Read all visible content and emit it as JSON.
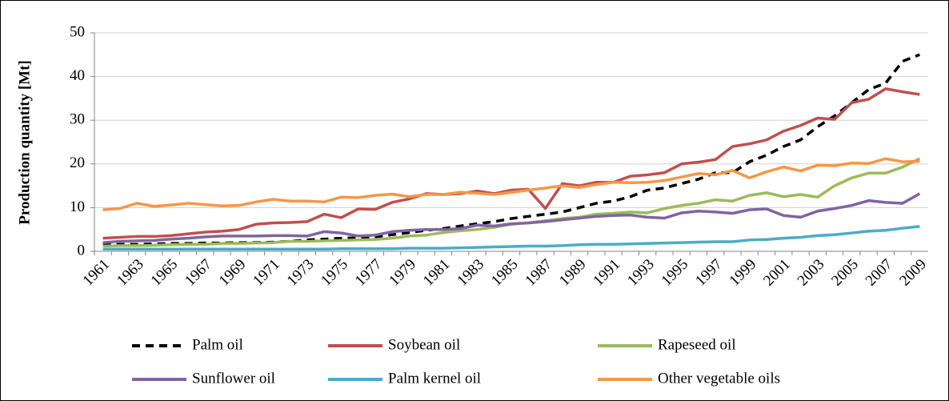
{
  "chart_data": {
    "type": "line",
    "y_label": "Production quantity [Mt]",
    "categories": [
      "1961",
      null,
      "1963",
      null,
      "1965",
      null,
      "1967",
      null,
      "1969",
      null,
      "1971",
      null,
      "1973",
      null,
      "1975",
      null,
      "1977",
      null,
      "1979",
      null,
      "1981",
      null,
      "1983",
      null,
      "1985",
      null,
      "1987",
      null,
      "1989",
      null,
      "1991",
      null,
      "1993",
      null,
      "1995",
      null,
      "1997",
      null,
      "1999",
      null,
      "2001",
      null,
      "2003",
      null,
      "2005",
      null,
      "2007",
      null,
      "2009"
    ],
    "ylim": [
      0,
      50
    ],
    "yticks": [
      0,
      10,
      20,
      30,
      40,
      50
    ],
    "grid": true,
    "legend": "bottom",
    "series": [
      {
        "name": "Palm oil",
        "color": "#000000",
        "dashed": true,
        "values": [
          1.5,
          1.6,
          1.6,
          1.7,
          1.8,
          1.8,
          1.9,
          1.9,
          2.0,
          2.0,
          2.1,
          2.3,
          2.6,
          2.8,
          3.0,
          3.1,
          3.3,
          3.8,
          4.3,
          4.8,
          5.2,
          5.8,
          6.3,
          6.8,
          7.5,
          8.0,
          8.5,
          9.0,
          10.0,
          11.0,
          11.5,
          12.5,
          14.0,
          14.5,
          15.5,
          16.5,
          18.0,
          18.0,
          20.5,
          22.0,
          24.0,
          25.5,
          28.5,
          31.0,
          34.0,
          37.0,
          38.5,
          43.5,
          45.0
        ]
      },
      {
        "name": "Soybean oil",
        "color": "#c0504d",
        "values": [
          3.0,
          3.2,
          3.4,
          3.4,
          3.6,
          4.0,
          4.4,
          4.6,
          5.0,
          6.2,
          6.5,
          6.6,
          6.8,
          8.5,
          7.7,
          9.7,
          9.6,
          11.2,
          12.0,
          13.2,
          13.0,
          13.2,
          13.8,
          13.2,
          14.0,
          14.2,
          9.8,
          15.5,
          15.0,
          15.8,
          15.8,
          17.2,
          17.5,
          18.0,
          20.0,
          20.4,
          21.0,
          24.0,
          24.6,
          25.5,
          27.5,
          28.8,
          30.5,
          30.2,
          34.0,
          34.8,
          37.2,
          36.5,
          35.9
        ]
      },
      {
        "name": "Rapeseed oil",
        "color": "#9bbb59",
        "values": [
          1.2,
          1.3,
          1.3,
          1.4,
          1.5,
          1.6,
          1.6,
          1.8,
          1.8,
          1.9,
          2.0,
          2.3,
          2.3,
          2.4,
          2.5,
          2.6,
          2.7,
          3.0,
          3.5,
          3.7,
          4.3,
          4.7,
          5.0,
          5.5,
          6.2,
          6.5,
          7.0,
          7.5,
          7.8,
          8.5,
          8.7,
          9.0,
          8.8,
          9.8,
          10.5,
          11.0,
          11.8,
          11.5,
          12.8,
          13.4,
          12.5,
          13.0,
          12.4,
          15.0,
          16.8,
          17.9,
          17.9,
          19.3,
          21.2
        ]
      },
      {
        "name": "Sunflower oil",
        "color": "#8064a2",
        "values": [
          2.0,
          2.3,
          2.4,
          2.5,
          2.8,
          3.0,
          3.3,
          3.5,
          3.5,
          3.5,
          3.6,
          3.6,
          3.5,
          4.5,
          4.2,
          3.5,
          3.7,
          4.5,
          4.8,
          5.0,
          5.0,
          5.2,
          6.0,
          5.8,
          6.3,
          6.5,
          6.8,
          7.2,
          7.6,
          8.0,
          8.2,
          8.3,
          7.8,
          7.6,
          8.8,
          9.2,
          9.0,
          8.7,
          9.5,
          9.7,
          8.2,
          7.8,
          9.2,
          9.8,
          10.5,
          11.6,
          11.2,
          11.0,
          13.2
        ]
      },
      {
        "name": "Palm kernel oil",
        "color": "#4bacc6",
        "values": [
          0.5,
          0.5,
          0.5,
          0.5,
          0.5,
          0.5,
          0.5,
          0.5,
          0.5,
          0.5,
          0.5,
          0.5,
          0.5,
          0.5,
          0.6,
          0.6,
          0.6,
          0.6,
          0.7,
          0.7,
          0.7,
          0.8,
          0.9,
          1.0,
          1.1,
          1.2,
          1.2,
          1.3,
          1.5,
          1.6,
          1.6,
          1.7,
          1.8,
          1.9,
          2.0,
          2.1,
          2.2,
          2.2,
          2.6,
          2.7,
          3.0,
          3.2,
          3.6,
          3.8,
          4.2,
          4.6,
          4.8,
          5.3,
          5.7
        ]
      },
      {
        "name": "Other vegetable oils",
        "color": "#f79646",
        "values": [
          9.5,
          9.8,
          11.0,
          10.3,
          10.6,
          11.0,
          10.7,
          10.4,
          10.5,
          11.3,
          11.9,
          11.5,
          11.5,
          11.3,
          12.4,
          12.3,
          12.8,
          13.1,
          12.5,
          13.0,
          13.0,
          13.5,
          13.3,
          13.0,
          13.5,
          14.0,
          14.5,
          15.0,
          14.6,
          15.3,
          15.8,
          15.7,
          15.8,
          16.2,
          17.0,
          17.8,
          17.5,
          18.5,
          16.8,
          18.2,
          19.3,
          18.4,
          19.7,
          19.6,
          20.2,
          20.1,
          21.2,
          20.5,
          20.6
        ]
      }
    ]
  }
}
